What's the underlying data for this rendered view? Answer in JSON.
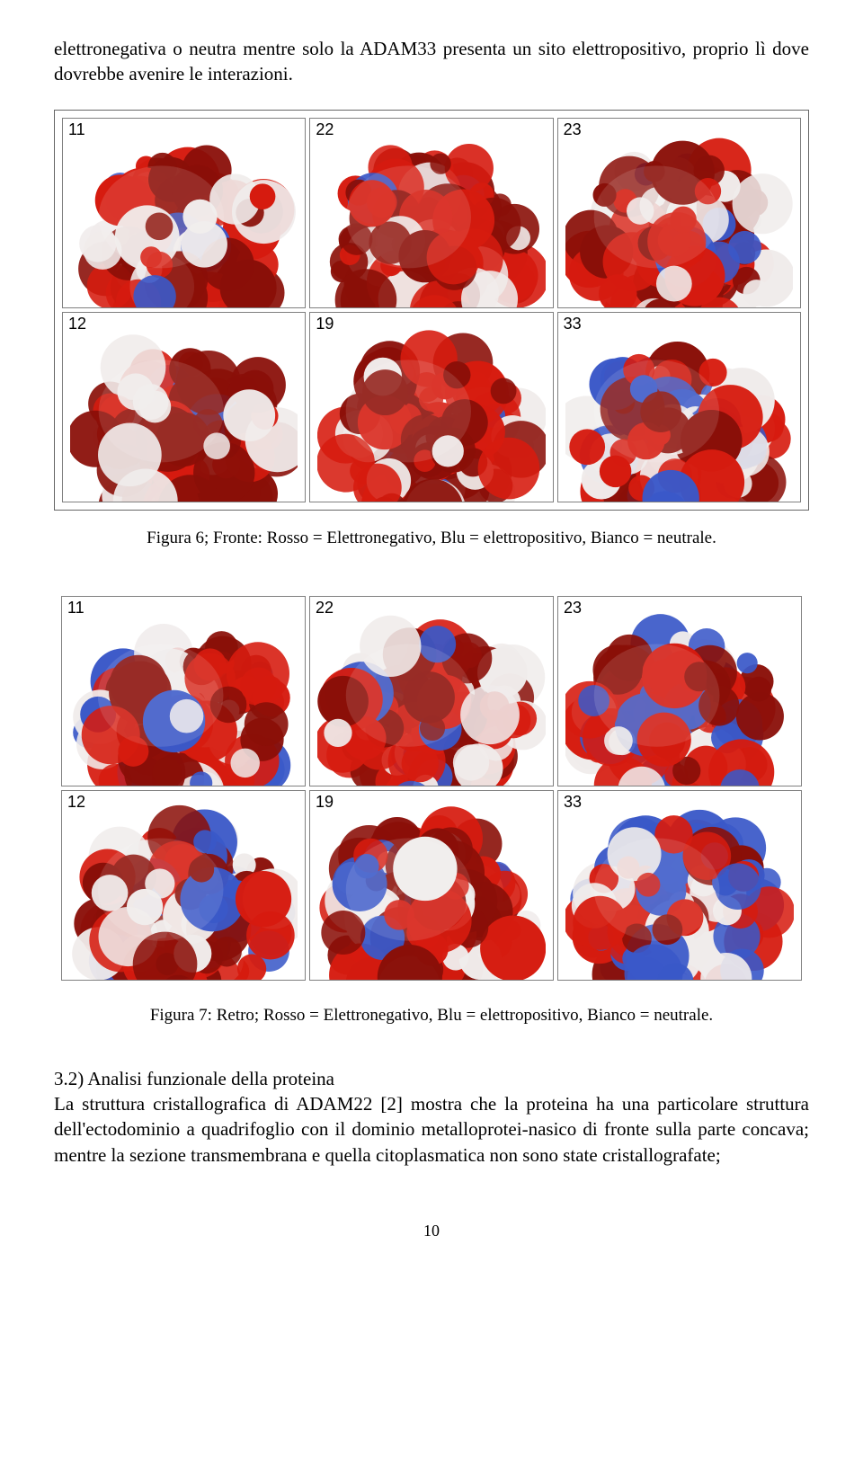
{
  "intro_text": "elettronegativa o neutra mentre solo la ADAM33 presenta un sito elettropositivo, proprio lì dove dovrebbe avenire le interazioni.",
  "figure6": {
    "caption": "Figura 6; Fronte: Rosso = Elettronegativo, Blu = elettropositivo, Bianco = neutrale.",
    "labels": [
      "11",
      "22",
      "23",
      "12",
      "19",
      "33"
    ],
    "bg": "#ffffff",
    "border": "#808080",
    "red": "#d61b0f",
    "red_dark": "#8a0f08",
    "blue": "#3a58c8",
    "white": "#f0eceb",
    "blue_ratio": [
      0.05,
      0.03,
      0.08,
      0.04,
      0.02,
      0.25
    ]
  },
  "figure7": {
    "caption": "Figura 7: Retro; Rosso = Elettronegativo, Blu = elettropositivo, Bianco = neutrale.",
    "labels": [
      "11",
      "22",
      "23",
      "12",
      "19",
      "33"
    ],
    "bg": "#ffffff",
    "border": "#808080",
    "red": "#d61b0f",
    "red_dark": "#8a0f08",
    "blue": "#3a58c8",
    "white": "#f0eceb",
    "blue_ratio": [
      0.15,
      0.12,
      0.2,
      0.18,
      0.1,
      0.35
    ]
  },
  "section": {
    "number": "3.2)",
    "title": "Analisi funzionale della proteina",
    "body": "La struttura cristallografica di ADAM22 [2] mostra che la proteina ha una particolare struttura dell'ectodominio a quadrifoglio con il dominio metalloprotei-nasico di fronte sulla parte concava; mentre la sezione transmembrana e quella citoplasmatica non sono state cristallografate;"
  },
  "page_number": "10"
}
